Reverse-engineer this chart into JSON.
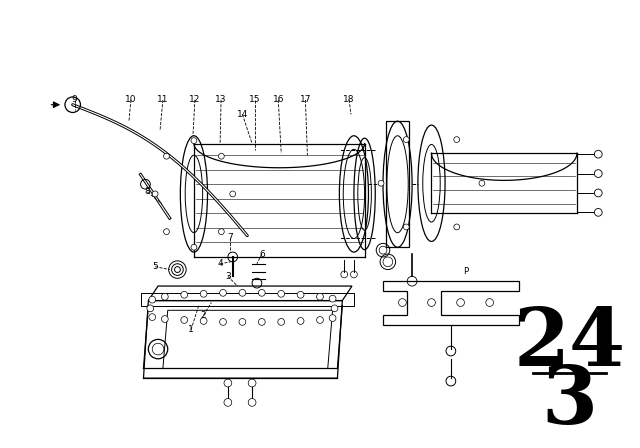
{
  "bg_color": "#ffffff",
  "line_color": "#000000",
  "diagram_number_top": "24",
  "diagram_number_bottom": "3",
  "figsize": [
    6.4,
    4.48
  ],
  "dpi": 100
}
